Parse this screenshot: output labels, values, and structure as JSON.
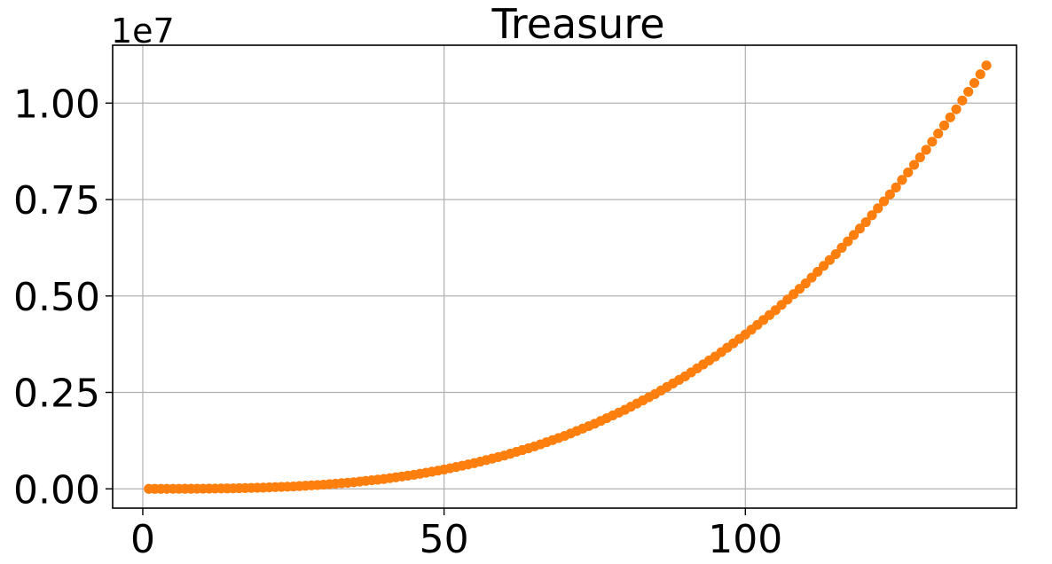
{
  "chart_data": {
    "type": "scatter",
    "title": "Treasure",
    "xlabel": "",
    "ylabel": "",
    "y_multiplier_label": "1e7",
    "y_multiplier": 10000000,
    "xlim": [
      -5,
      145
    ],
    "ylim": [
      -0.05,
      1.15
    ],
    "x_ticks": [
      0,
      50,
      100
    ],
    "x_tick_labels": [
      "0",
      "50",
      "100"
    ],
    "y_ticks": [
      0,
      0.25,
      0.5,
      0.75,
      1.0
    ],
    "y_tick_labels": [
      "0.00",
      "0.25",
      "0.50",
      "0.75",
      "1.00"
    ],
    "grid": true,
    "legend": "none",
    "series": [
      {
        "color": "#ff7f0e",
        "x_start": 1,
        "x_end": 140,
        "x_step": 1,
        "x": [
          1,
          5,
          10,
          15,
          20,
          25,
          30,
          35,
          40,
          45,
          50,
          55,
          60,
          65,
          70,
          75,
          80,
          85,
          90,
          95,
          100,
          105,
          110,
          115,
          120,
          125,
          130,
          135,
          140
        ],
        "y": [
          0.0,
          0.0001,
          0.0004,
          0.0013,
          0.0032,
          0.0062,
          0.0108,
          0.0171,
          0.0256,
          0.0364,
          0.05,
          0.0666,
          0.0864,
          0.1099,
          0.1372,
          0.1688,
          0.2048,
          0.2457,
          0.2916,
          0.343,
          0.4,
          0.463,
          0.5324,
          0.6084,
          0.6912,
          0.7813,
          0.8788,
          0.9841,
          1.0976
        ]
      }
    ]
  }
}
